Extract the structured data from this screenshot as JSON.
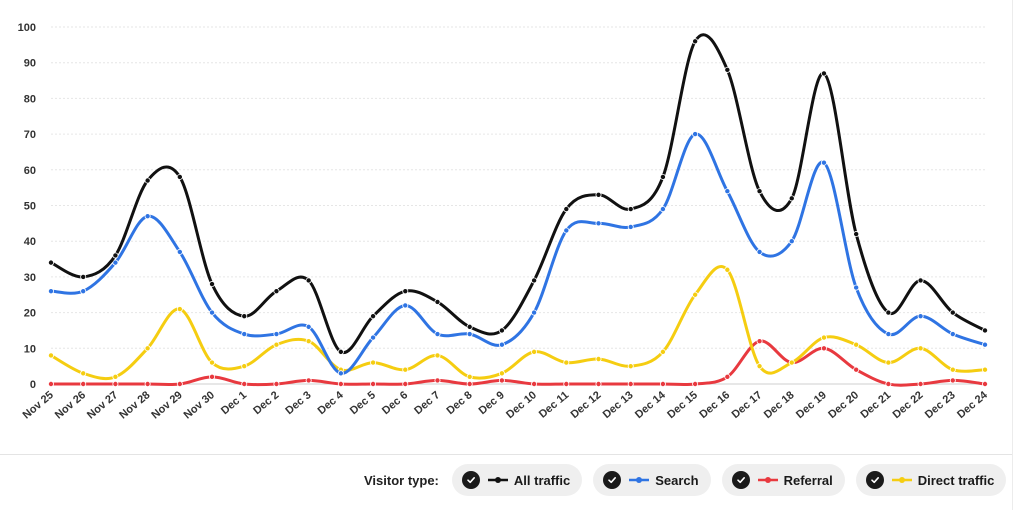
{
  "chart_data": {
    "type": "line",
    "title": "",
    "xlabel": "",
    "ylabel": "",
    "ylim": [
      0,
      100
    ],
    "yticks": [
      0,
      10,
      20,
      30,
      40,
      50,
      60,
      70,
      80,
      90,
      100
    ],
    "grid": true,
    "categories": [
      "Nov 25",
      "Nov 26",
      "Nov 27",
      "Nov 28",
      "Nov 29",
      "Nov 30",
      "Dec 1",
      "Dec 2",
      "Dec 3",
      "Dec 4",
      "Dec 5",
      "Dec 6",
      "Dec 7",
      "Dec 8",
      "Dec 9",
      "Dec 10",
      "Dec 11",
      "Dec 12",
      "Dec 13",
      "Dec 14",
      "Dec 15",
      "Dec 16",
      "Dec 17",
      "Dec 18",
      "Dec 19",
      "Dec 20",
      "Dec 21",
      "Dec 22",
      "Dec 23",
      "Dec 24"
    ],
    "series": [
      {
        "name": "All traffic",
        "color": "#111111",
        "values": [
          34,
          30,
          36,
          57,
          58,
          28,
          19,
          26,
          29,
          9,
          19,
          26,
          23,
          16,
          15,
          29,
          49,
          53,
          49,
          58,
          96,
          88,
          54,
          52,
          87,
          42,
          20,
          29,
          20,
          15
        ]
      },
      {
        "name": "Search",
        "color": "#2f74e3",
        "values": [
          26,
          26,
          34,
          47,
          37,
          20,
          14,
          14,
          16,
          3,
          13,
          22,
          14,
          14,
          11,
          20,
          43,
          45,
          44,
          49,
          70,
          54,
          37,
          40,
          62,
          27,
          14,
          19,
          14,
          11
        ]
      },
      {
        "name": "Referral",
        "color": "#e8393f",
        "values": [
          0,
          0,
          0,
          0,
          0,
          2,
          0,
          0,
          1,
          0,
          0,
          0,
          1,
          0,
          1,
          0,
          0,
          0,
          0,
          0,
          0,
          2,
          12,
          6,
          10,
          4,
          0,
          0,
          1,
          0
        ]
      },
      {
        "name": "Direct traffic",
        "color": "#f5cd11",
        "values": [
          8,
          3,
          2,
          10,
          21,
          6,
          5,
          11,
          12,
          4,
          6,
          4,
          8,
          2,
          3,
          9,
          6,
          7,
          5,
          9,
          25,
          32,
          5,
          6,
          13,
          11,
          6,
          10,
          4,
          4
        ]
      }
    ]
  },
  "legend": {
    "title": "Visitor type:",
    "items": [
      "All traffic",
      "Search",
      "Referral",
      "Direct traffic"
    ]
  }
}
